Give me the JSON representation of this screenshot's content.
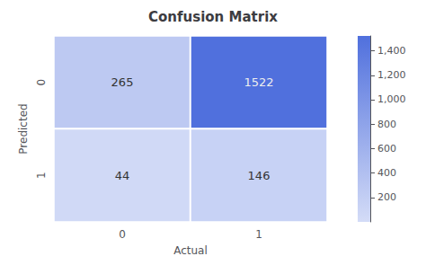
{
  "chart_data": {
    "type": "heatmap",
    "title": "Confusion Matrix",
    "xlabel": "Actual",
    "ylabel": "Predicted",
    "x_categories": [
      "0",
      "1"
    ],
    "y_categories": [
      "0",
      "1"
    ],
    "values": [
      [
        265,
        1522
      ],
      [
        44,
        146
      ]
    ],
    "colorbar_range": [
      0,
      1522
    ],
    "colorbar_ticks": [
      200,
      400,
      600,
      800,
      1000,
      1200,
      1400
    ],
    "data_labels": true
  }
}
